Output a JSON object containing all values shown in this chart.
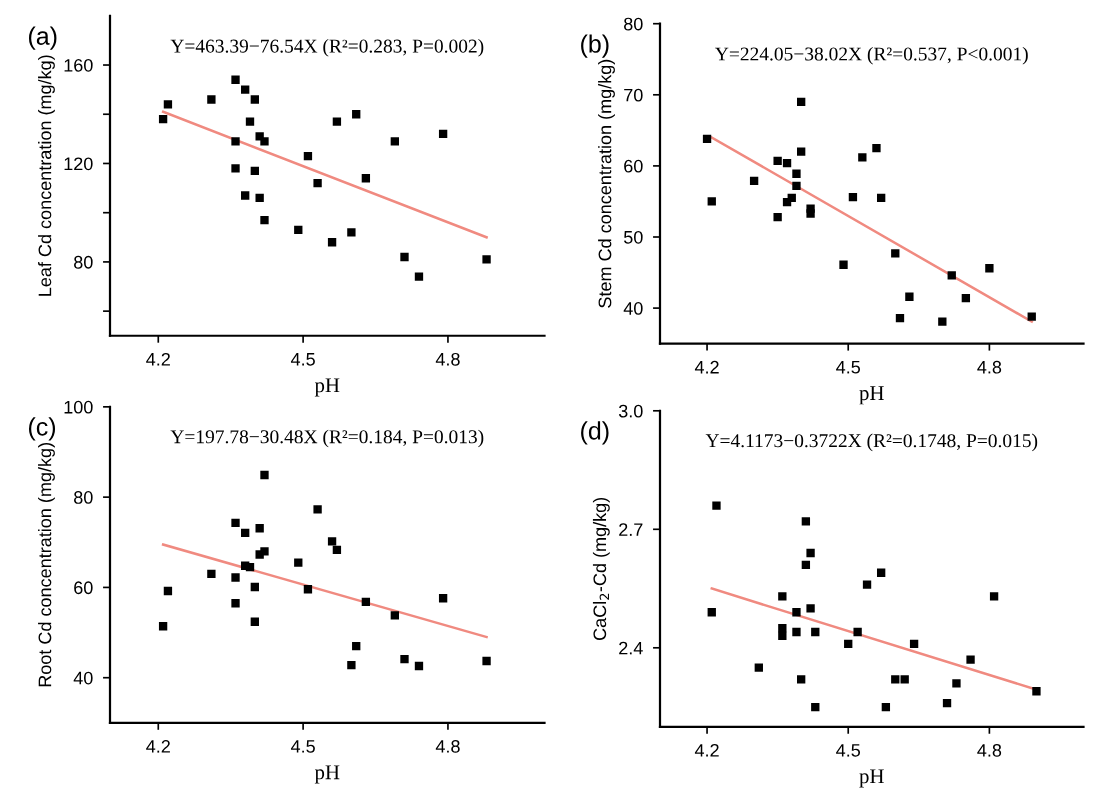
{
  "chart_data": [
    {
      "type": "scatter",
      "xlabel": "pH",
      "ylabel": "Leaf Cd concentration (mg/kg)",
      "annotations": [
        "(a)",
        "Y=463.39−76.54X (R²=0.283, P=0.002)"
      ],
      "xlim": [
        4.1,
        5.0
      ],
      "xticks": [
        4.2,
        4.5,
        4.8
      ],
      "ylim": [
        50,
        180
      ],
      "yticks": [
        {
          "value": 60,
          "label": null
        },
        80,
        {
          "value": 100,
          "label": null
        },
        120,
        {
          "value": 140,
          "label": null
        },
        160
      ],
      "grid": false,
      "series": [
        {
          "marker": "square",
          "color": "#000000",
          "x": [
            4.21,
            4.22,
            4.31,
            4.36,
            4.36,
            4.36,
            4.38,
            4.38,
            4.39,
            4.4,
            4.4,
            4.41,
            4.41,
            4.42,
            4.42,
            4.49,
            4.51,
            4.53,
            4.56,
            4.57,
            4.6,
            4.61,
            4.63,
            4.69,
            4.71,
            4.74,
            4.79,
            4.88
          ],
          "values": [
            138,
            144,
            146,
            154,
            129,
            118,
            150,
            107,
            137,
            146,
            117,
            131,
            106,
            129,
            97,
            93,
            123,
            112,
            88,
            137,
            92,
            140,
            114,
            129,
            82,
            74,
            132,
            81
          ]
        },
        {
          "type": "line",
          "color": "#f08a80",
          "x": [
            4.21,
            4.88
          ],
          "values": [
            141,
            90
          ]
        }
      ]
    },
    {
      "type": "scatter",
      "xlabel": "pH",
      "ylabel": "Stem Cd concentration (mg/kg)",
      "annotations": [
        "(b)",
        "Y=224.05−38.02X (R²=0.537, P<0.001)"
      ],
      "xlim": [
        4.1,
        5.0
      ],
      "xticks": [
        4.2,
        4.5,
        4.8
      ],
      "ylim": [
        35,
        80
      ],
      "yticks": [
        40,
        50,
        60,
        70,
        80
      ],
      "grid": false,
      "series": [
        {
          "marker": "square",
          "color": "#000000",
          "x": [
            4.2,
            4.21,
            4.3,
            4.35,
            4.35,
            4.37,
            4.37,
            4.38,
            4.39,
            4.39,
            4.4,
            4.4,
            4.42,
            4.42,
            4.49,
            4.51,
            4.53,
            4.56,
            4.57,
            4.6,
            4.61,
            4.63,
            4.7,
            4.72,
            4.75,
            4.8,
            4.89
          ],
          "values": [
            63.8,
            55,
            57.9,
            60.7,
            52.8,
            60.4,
            54.9,
            55.5,
            58.9,
            57.2,
            69,
            62,
            54,
            53.3,
            46.1,
            55.6,
            61.2,
            62.5,
            55.5,
            47.7,
            38.6,
            41.6,
            38.1,
            44.6,
            41.4,
            45.6,
            38.8
          ]
        },
        {
          "type": "line",
          "color": "#f08a80",
          "x": [
            4.21,
            4.89
          ],
          "values": [
            64.0,
            38.1
          ]
        }
      ]
    },
    {
      "type": "scatter",
      "xlabel": "pH",
      "ylabel": "Root Cd concentration (mg/kg)",
      "annotations": [
        "(c)",
        "Y=197.78−30.48X (R²=0.184, P=0.013)"
      ],
      "xlim": [
        4.1,
        5.0
      ],
      "xticks": [
        4.2,
        4.5,
        4.8
      ],
      "ylim": [
        30,
        100
      ],
      "yticks": [
        40,
        60,
        80,
        100
      ],
      "grid": false,
      "series": [
        {
          "marker": "square",
          "color": "#000000",
          "x": [
            4.21,
            4.22,
            4.31,
            4.36,
            4.36,
            4.36,
            4.38,
            4.38,
            4.39,
            4.4,
            4.4,
            4.41,
            4.41,
            4.42,
            4.42,
            4.49,
            4.51,
            4.53,
            4.56,
            4.57,
            4.6,
            4.61,
            4.63,
            4.69,
            4.71,
            4.74,
            4.79,
            4.88
          ],
          "values": [
            51.4,
            59.2,
            63,
            74.3,
            62.2,
            56.5,
            72.1,
            64.8,
            64.5,
            60.1,
            52.4,
            73.1,
            67.3,
            68,
            84.9,
            65.5,
            59.6,
            77.3,
            70.2,
            68.3,
            42.8,
            47,
            56.8,
            53.8,
            44.1,
            42.6,
            57.6,
            43.7
          ]
        },
        {
          "type": "line",
          "color": "#f08a80",
          "x": [
            4.21,
            4.88
          ],
          "values": [
            69.5,
            49.0
          ]
        }
      ]
    },
    {
      "type": "scatter",
      "xlabel": "pH",
      "ylabel": "CaCl$_{2}$-Cd (mg/kg)",
      "annotations": [
        "(d)",
        "Y=4.1173−0.3722X (R²=0.1748, P=0.015)"
      ],
      "xlim": [
        4.1,
        5.0
      ],
      "xticks": [
        4.2,
        4.5,
        4.8
      ],
      "ylim": [
        2.2,
        3.0
      ],
      "yticks": [
        2.4,
        2.7,
        {
          "value": 3.0,
          "label": "3.0"
        }
      ],
      "grid": false,
      "series": [
        {
          "marker": "square",
          "color": "#000000",
          "x": [
            4.21,
            4.22,
            4.31,
            4.36,
            4.36,
            4.36,
            4.39,
            4.39,
            4.4,
            4.41,
            4.41,
            4.42,
            4.42,
            4.43,
            4.43,
            4.5,
            4.52,
            4.54,
            4.57,
            4.58,
            4.6,
            4.62,
            4.64,
            4.71,
            4.73,
            4.76,
            4.81,
            4.9
          ],
          "values": [
            2.49,
            2.76,
            2.35,
            2.53,
            2.45,
            2.43,
            2.49,
            2.44,
            2.32,
            2.72,
            2.61,
            2.64,
            2.5,
            2.44,
            2.25,
            2.41,
            2.44,
            2.56,
            2.59,
            2.25,
            2.32,
            2.32,
            2.41,
            2.26,
            2.31,
            2.37,
            2.53,
            2.29
          ]
        },
        {
          "type": "line",
          "color": "#f08a80",
          "x": [
            4.21,
            4.9
          ],
          "values": [
            2.55,
            2.294
          ]
        }
      ]
    }
  ]
}
